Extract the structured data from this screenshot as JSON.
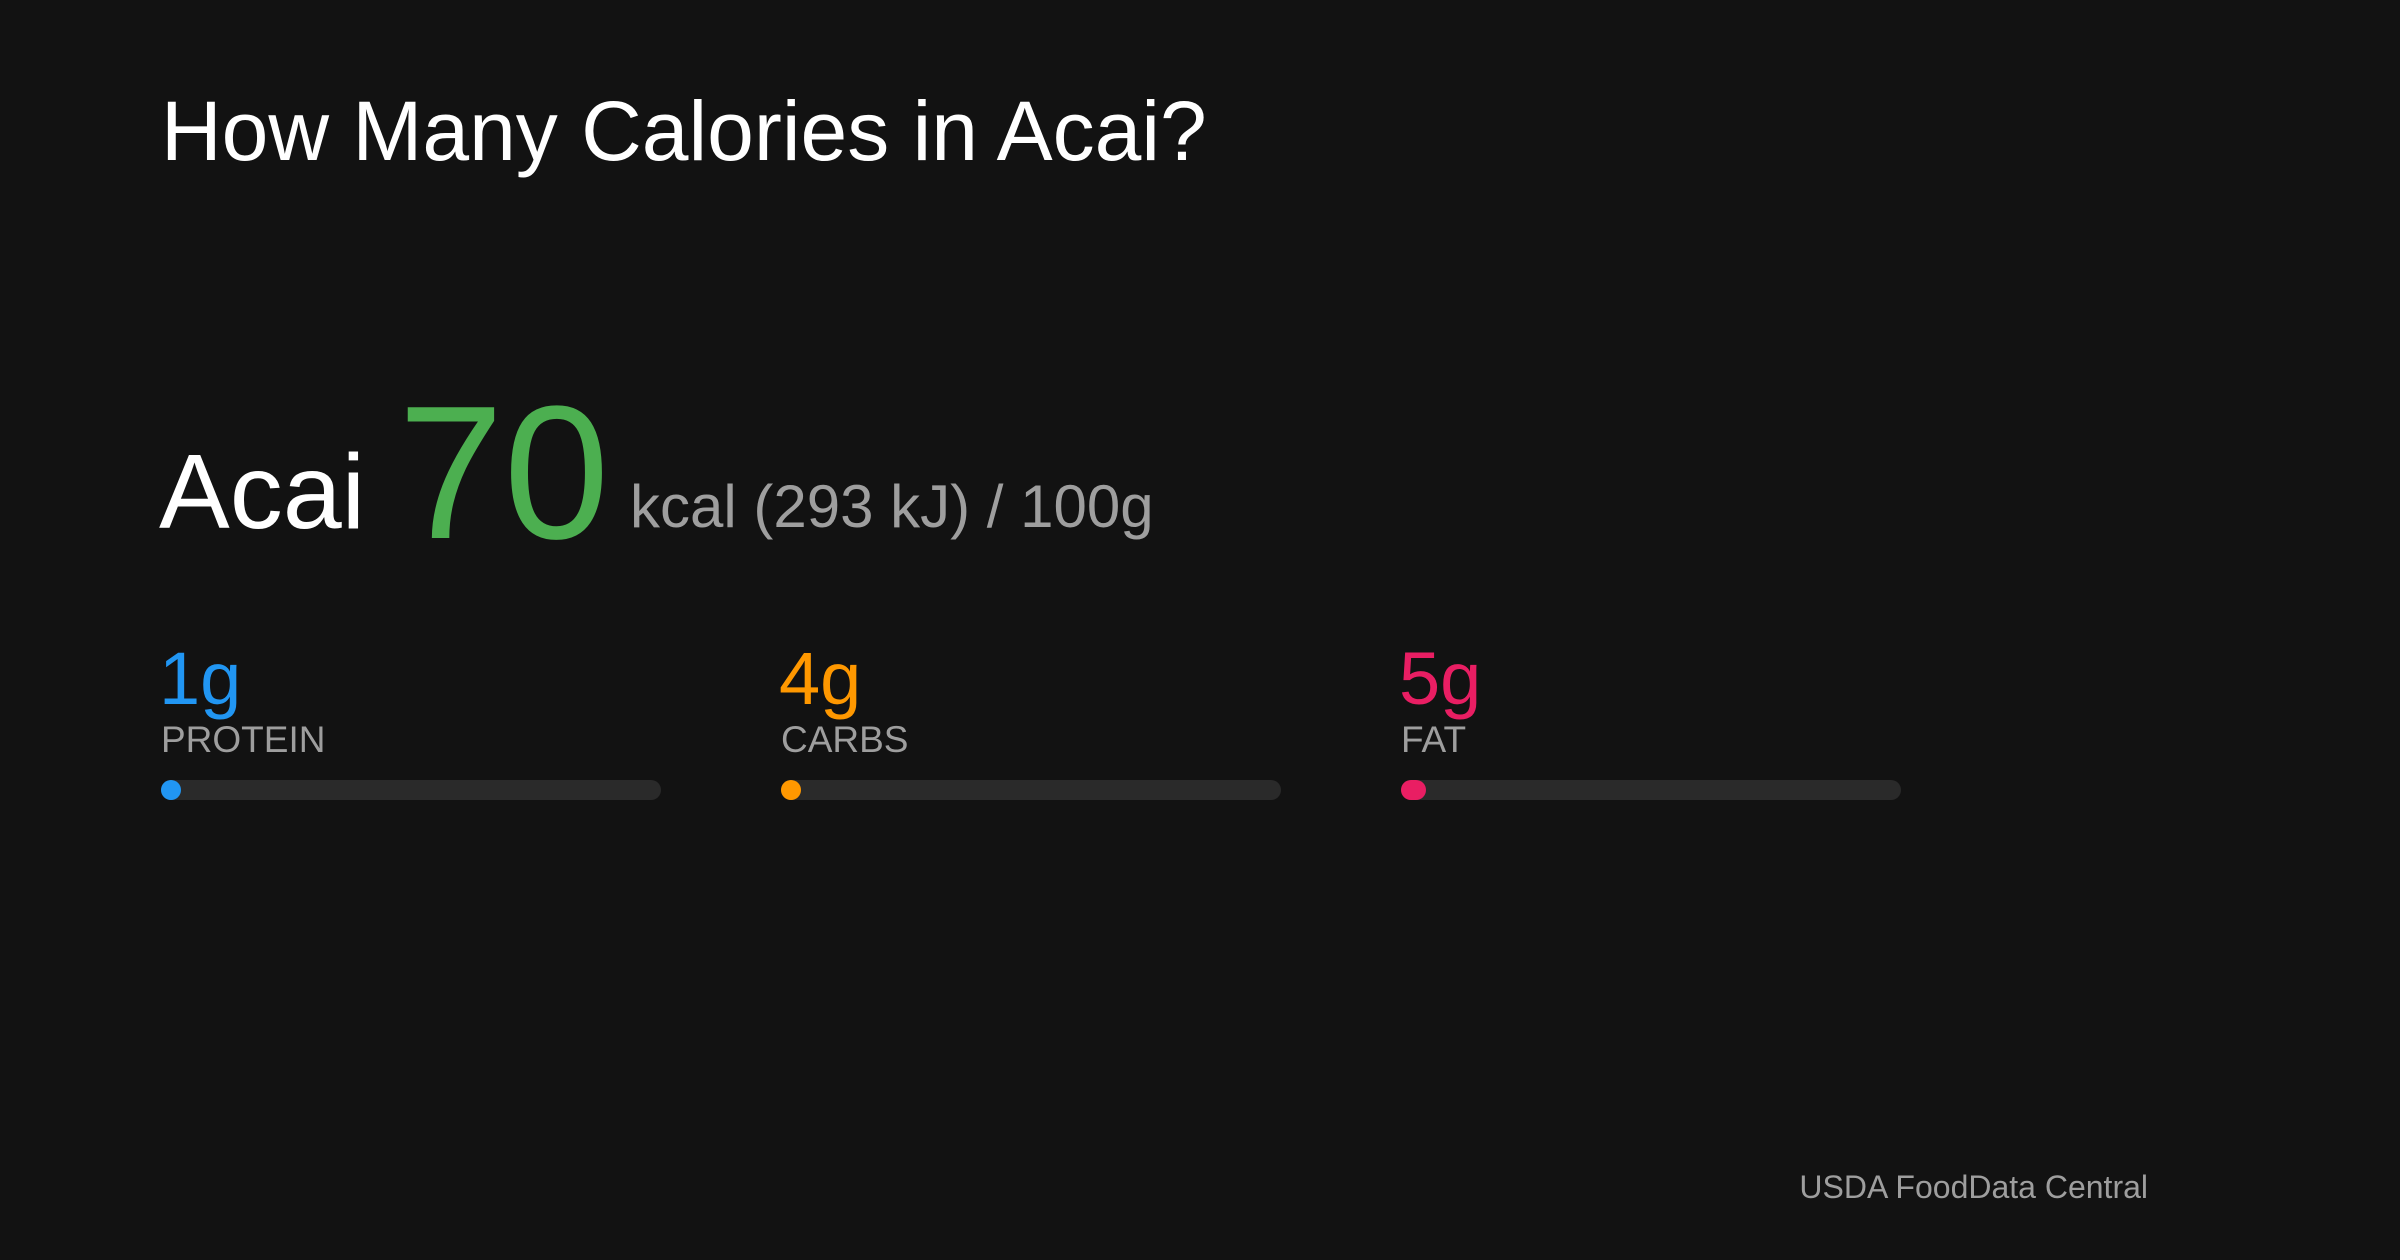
{
  "title": "How Many Calories in Acai?",
  "food": {
    "name": "Acai",
    "calories": 70,
    "unit_text": "kcal (293 kJ) / 100g",
    "color": "#4caf50"
  },
  "macros": [
    {
      "value": 1,
      "value_label": "1g",
      "name": "PROTEIN",
      "color": "#2196f3"
    },
    {
      "value": 4,
      "value_label": "4g",
      "name": "CARBS",
      "color": "#ff9800"
    },
    {
      "value": 5,
      "value_label": "5g",
      "name": "FAT",
      "color": "#e91e63"
    }
  ],
  "source": "USDA FoodData Central"
}
